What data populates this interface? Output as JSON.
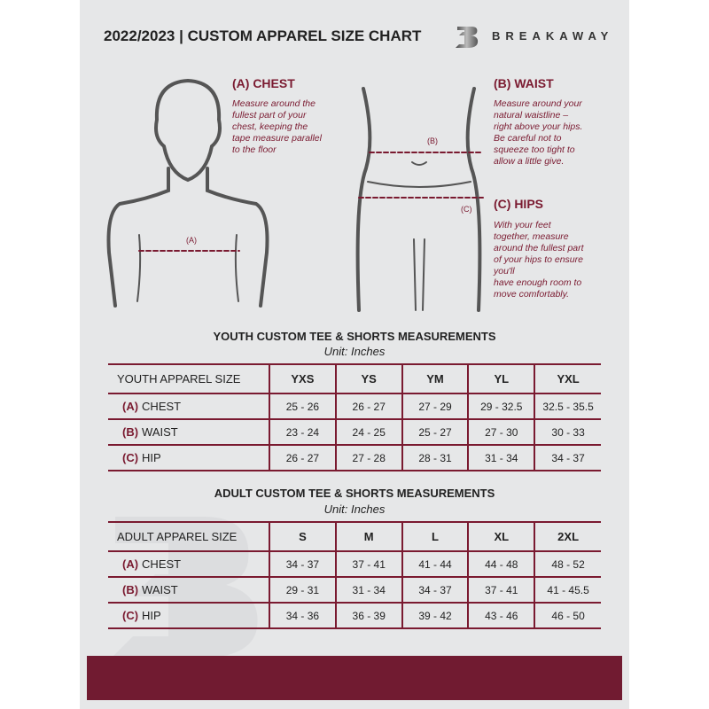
{
  "header": {
    "title": "2022/2023  |  CUSTOM APPAREL SIZE CHART",
    "brand": "BREAKAWAY"
  },
  "measures": {
    "chest": {
      "heading": "(A) CHEST",
      "text": [
        "Measure around the",
        "fullest part of your",
        "chest, keeping the",
        "tape measure parallel",
        "to the floor"
      ],
      "marker": "(A)"
    },
    "waist": {
      "heading": "(B) WAIST",
      "text": [
        "Measure around your",
        "natural waistline –",
        "right above your hips.",
        "Be careful not to",
        "squeeze too tight to",
        "allow a little give."
      ],
      "marker": "(B)"
    },
    "hips": {
      "heading": "(C) HIPS",
      "text": [
        "With your feet",
        "together, measure",
        "around the fullest part",
        "of your hips to ensure",
        "you'll",
        "have enough room to",
        "move comfortably."
      ],
      "marker": "(C)"
    }
  },
  "youth": {
    "title": "YOUTH CUSTOM TEE & SHORTS MEASUREMENTS",
    "unit": "Unit: Inches",
    "size_label": "YOUTH APPAREL SIZE",
    "sizes": [
      "YXS",
      "YS",
      "YM",
      "YL",
      "YXL"
    ],
    "rows": [
      {
        "letter": "(A)",
        "name": "CHEST",
        "values": [
          "25 - 26",
          "26 - 27",
          "27 - 29",
          "29 - 32.5",
          "32.5 - 35.5"
        ]
      },
      {
        "letter": "(B)",
        "name": "WAIST",
        "values": [
          "23 - 24",
          "24 - 25",
          "25 - 27",
          "27 - 30",
          "30 - 33"
        ]
      },
      {
        "letter": "(C)",
        "name": "HIP",
        "values": [
          "26 - 27",
          "27 - 28",
          "28 - 31",
          "31 - 34",
          "34 - 37"
        ]
      }
    ]
  },
  "adult": {
    "title": "ADULT CUSTOM TEE & SHORTS MEASUREMENTS",
    "unit": "Unit: Inches",
    "size_label": "ADULT APPAREL SIZE",
    "sizes": [
      "S",
      "M",
      "L",
      "XL",
      "2XL"
    ],
    "rows": [
      {
        "letter": "(A)",
        "name": "CHEST",
        "values": [
          "34 - 37",
          "37 - 41",
          "41 - 44",
          "44 - 48",
          "48 - 52"
        ]
      },
      {
        "letter": "(B)",
        "name": "WAIST",
        "values": [
          "29 - 31",
          "31 - 34",
          "34 - 37",
          "37 - 41",
          "41 - 45.5"
        ]
      },
      {
        "letter": "(C)",
        "name": "HIP",
        "values": [
          "34 - 36",
          "36 - 39",
          "39 - 42",
          "43 - 46",
          "46 - 50"
        ]
      }
    ]
  },
  "colors": {
    "accent": "#7a1a30",
    "background": "#e6e7e8",
    "footer": "#711b31"
  }
}
